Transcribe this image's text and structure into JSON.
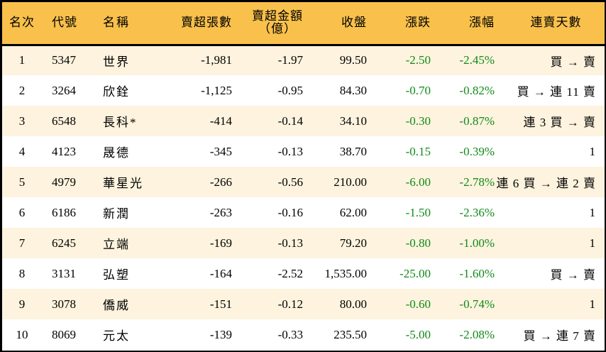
{
  "table": {
    "headers": {
      "rank": "名次",
      "code": "代號",
      "name": "名稱",
      "net_sell_lots": "賣超張數",
      "net_sell_amount_line1": "賣超金額",
      "net_sell_amount_line2": "（億）",
      "close": "收盤",
      "change": "漲跌",
      "change_pct": "漲幅",
      "consecutive_days": "連賣天數"
    },
    "rows": [
      {
        "rank": "1",
        "code": "5347",
        "name": "世界",
        "lots": "-1,981",
        "amount": "-1.97",
        "close": "99.50",
        "change": "-2.50",
        "pct": "-2.45%",
        "days": "買 → 賣"
      },
      {
        "rank": "2",
        "code": "3264",
        "name": "欣銓",
        "lots": "-1,125",
        "amount": "-0.95",
        "close": "84.30",
        "change": "-0.70",
        "pct": "-0.82%",
        "days": "買 → 連 11 賣"
      },
      {
        "rank": "3",
        "code": "6548",
        "name": "長科*",
        "lots": "-414",
        "amount": "-0.14",
        "close": "34.10",
        "change": "-0.30",
        "pct": "-0.87%",
        "days": "連 3 買 → 賣"
      },
      {
        "rank": "4",
        "code": "4123",
        "name": "晟德",
        "lots": "-345",
        "amount": "-0.13",
        "close": "38.70",
        "change": "-0.15",
        "pct": "-0.39%",
        "days": "1"
      },
      {
        "rank": "5",
        "code": "4979",
        "name": "華星光",
        "lots": "-266",
        "amount": "-0.56",
        "close": "210.00",
        "change": "-6.00",
        "pct": "-2.78%",
        "days": "連 6 買 → 連 2 賣"
      },
      {
        "rank": "6",
        "code": "6186",
        "name": "新潤",
        "lots": "-263",
        "amount": "-0.16",
        "close": "62.00",
        "change": "-1.50",
        "pct": "-2.36%",
        "days": "1"
      },
      {
        "rank": "7",
        "code": "6245",
        "name": "立端",
        "lots": "-169",
        "amount": "-0.13",
        "close": "79.20",
        "change": "-0.80",
        "pct": "-1.00%",
        "days": "1"
      },
      {
        "rank": "8",
        "code": "3131",
        "name": "弘塑",
        "lots": "-164",
        "amount": "-2.52",
        "close": "1,535.00",
        "change": "-25.00",
        "pct": "-1.60%",
        "days": "買 → 賣"
      },
      {
        "rank": "9",
        "code": "3078",
        "name": "僑威",
        "lots": "-151",
        "amount": "-0.12",
        "close": "80.00",
        "change": "-0.60",
        "pct": "-0.74%",
        "days": "1"
      },
      {
        "rank": "10",
        "code": "8069",
        "name": "元太",
        "lots": "-139",
        "amount": "-0.33",
        "close": "235.50",
        "change": "-5.00",
        "pct": "-2.08%",
        "days": "買 → 連 7 賣"
      }
    ]
  },
  "colors": {
    "header_bg": "#F9C14C",
    "row_odd_bg": "#FDF3DE",
    "row_even_bg": "#FFFFFF",
    "negative_change": "#118A1A",
    "border": "#000000"
  }
}
